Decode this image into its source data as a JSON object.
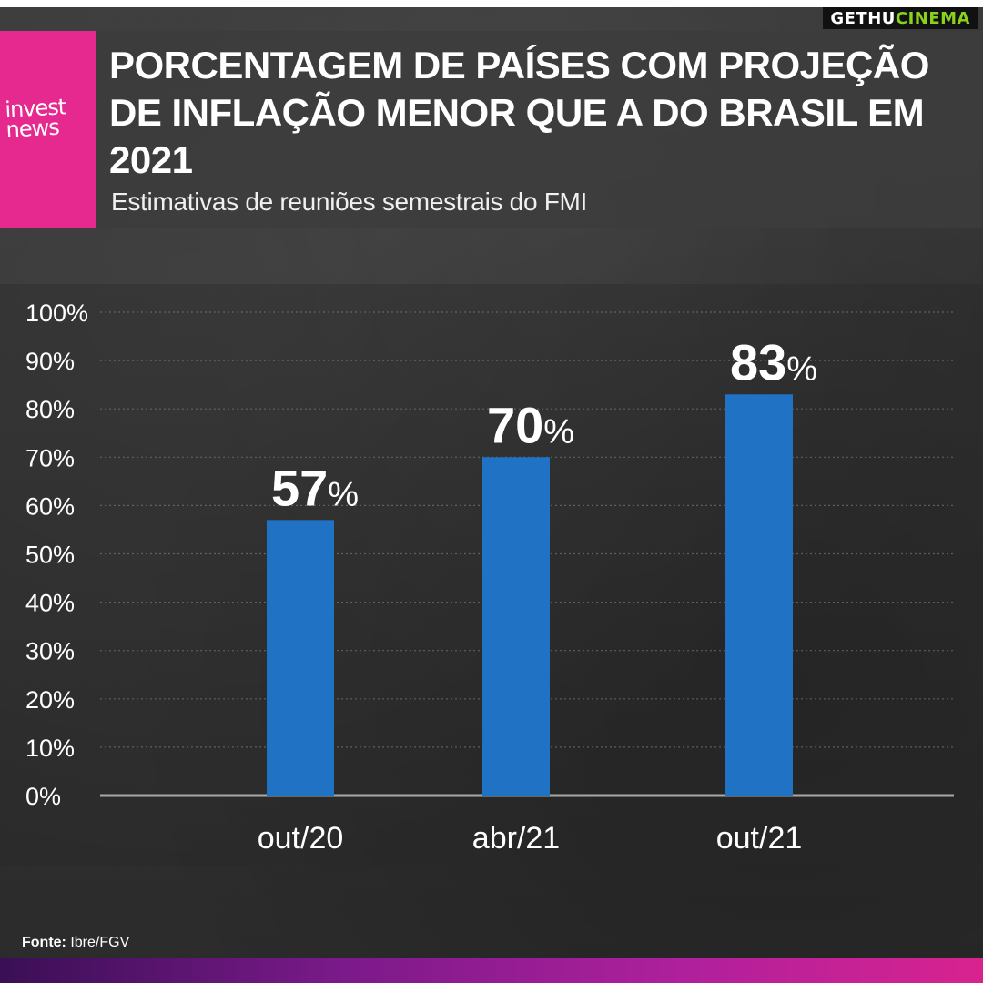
{
  "watermark": {
    "part1": "GETHU",
    "part2": "CINEMA"
  },
  "brand": {
    "logo_line1": "invest",
    "logo_line2": "news",
    "pink": "#e5298e"
  },
  "header": {
    "title": "PORCENTAGEM DE PAÍSES COM PROJEÇÃO DE INFLAÇÃO MENOR QUE A DO BRASIL EM 2021",
    "subtitle": "Estimativas de reuniões semestrais do FMI"
  },
  "chart_data": {
    "type": "bar",
    "title": "PORCENTAGEM DE PAÍSES COM PROJEÇÃO DE INFLAÇÃO MENOR QUE A DO BRASIL EM 2021",
    "subtitle": "Estimativas de reuniões semestrais do FMI",
    "categories": [
      "out/20",
      "abr/21",
      "out/21"
    ],
    "values": [
      57,
      70,
      83
    ],
    "data_labels": [
      {
        "number": "57",
        "unit": "%"
      },
      {
        "number": "70",
        "unit": "%"
      },
      {
        "number": "83",
        "unit": "%"
      }
    ],
    "yticks": [
      "0%",
      "10%",
      "20%",
      "30%",
      "40%",
      "50%",
      "60%",
      "70%",
      "80%",
      "90%",
      "100%"
    ],
    "ylim": [
      0,
      100
    ],
    "xlabel": "",
    "ylabel": "",
    "grid": true,
    "legend": "none",
    "bar_color": "#1f72c4"
  },
  "source": {
    "label": "Fonte:",
    "text": "Ibre/FGV"
  }
}
